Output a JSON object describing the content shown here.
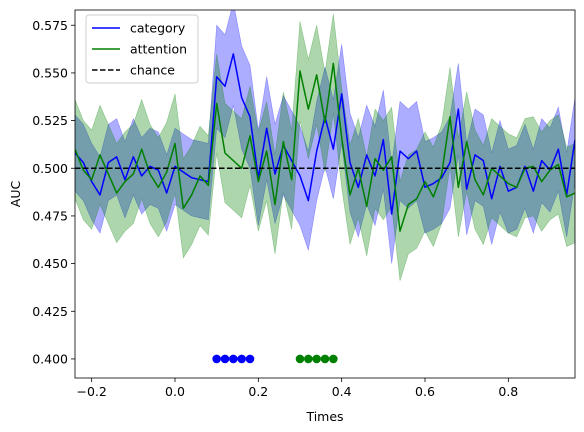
{
  "chart_data": {
    "type": "line",
    "xlabel": "Times",
    "ylabel": "AUC",
    "xlim": [
      -0.24,
      0.96
    ],
    "ylim": [
      0.39,
      0.583
    ],
    "grid": false,
    "legend_position": "top-left",
    "x_ticks": [
      -0.2,
      0.0,
      0.2,
      0.4,
      0.6,
      0.8
    ],
    "x_tick_labels": [
      "−0.2",
      "0.0",
      "0.2",
      "0.4",
      "0.6",
      "0.8"
    ],
    "y_ticks": [
      0.4,
      0.425,
      0.45,
      0.475,
      0.5,
      0.525,
      0.55,
      0.575
    ],
    "y_tick_labels": [
      "0.400",
      "0.425",
      "0.450",
      "0.475",
      "0.500",
      "0.525",
      "0.550",
      "0.575"
    ],
    "x": [
      -0.24,
      -0.22,
      -0.2,
      -0.18,
      -0.16,
      -0.14,
      -0.12,
      -0.1,
      -0.08,
      -0.06,
      -0.04,
      -0.02,
      0.0,
      0.02,
      0.04,
      0.06,
      0.08,
      0.1,
      0.12,
      0.14,
      0.16,
      0.18,
      0.2,
      0.22,
      0.24,
      0.26,
      0.28,
      0.3,
      0.32,
      0.34,
      0.36,
      0.38,
      0.4,
      0.42,
      0.44,
      0.46,
      0.48,
      0.5,
      0.52,
      0.54,
      0.56,
      0.58,
      0.6,
      0.62,
      0.64,
      0.66,
      0.68,
      0.7,
      0.72,
      0.74,
      0.76,
      0.78,
      0.8,
      0.82,
      0.84,
      0.86,
      0.88,
      0.9,
      0.92,
      0.94,
      0.96
    ],
    "series": [
      {
        "name": "category",
        "color": "#0000ff",
        "values": [
          0.508,
          0.503,
          0.493,
          0.486,
          0.503,
          0.506,
          0.494,
          0.506,
          0.496,
          0.501,
          0.499,
          0.487,
          0.501,
          0.498,
          0.495,
          0.494,
          0.493,
          0.548,
          0.543,
          0.56,
          0.537,
          0.527,
          0.495,
          0.521,
          0.497,
          0.512,
          0.504,
          0.496,
          0.483,
          0.509,
          0.527,
          0.51,
          0.539,
          0.503,
          0.49,
          0.507,
          0.496,
          0.515,
          0.476,
          0.509,
          0.505,
          0.509,
          0.49,
          0.492,
          0.495,
          0.503,
          0.531,
          0.489,
          0.507,
          0.504,
          0.484,
          0.501,
          0.488,
          0.49,
          0.501,
          0.488,
          0.504,
          0.499,
          0.51,
          0.486,
          0.515
        ],
        "lower": [
          0.488,
          0.483,
          0.473,
          0.466,
          0.483,
          0.486,
          0.474,
          0.486,
          0.476,
          0.481,
          0.479,
          0.467,
          0.481,
          0.478,
          0.475,
          0.474,
          0.473,
          0.521,
          0.516,
          0.533,
          0.51,
          0.5,
          0.47,
          0.494,
          0.471,
          0.486,
          0.478,
          0.47,
          0.457,
          0.483,
          0.501,
          0.484,
          0.513,
          0.477,
          0.464,
          0.481,
          0.47,
          0.489,
          0.45,
          0.483,
          0.479,
          0.483,
          0.466,
          0.468,
          0.471,
          0.479,
          0.507,
          0.465,
          0.483,
          0.48,
          0.46,
          0.477,
          0.466,
          0.468,
          0.479,
          0.466,
          0.482,
          0.477,
          0.488,
          0.464,
          0.493
        ],
        "upper": [
          0.528,
          0.523,
          0.513,
          0.506,
          0.523,
          0.526,
          0.514,
          0.526,
          0.516,
          0.521,
          0.519,
          0.507,
          0.521,
          0.518,
          0.515,
          0.514,
          0.513,
          0.575,
          0.57,
          0.587,
          0.564,
          0.554,
          0.52,
          0.548,
          0.523,
          0.538,
          0.53,
          0.522,
          0.509,
          0.535,
          0.553,
          0.536,
          0.565,
          0.529,
          0.516,
          0.533,
          0.522,
          0.541,
          0.502,
          0.535,
          0.531,
          0.535,
          0.514,
          0.516,
          0.519,
          0.527,
          0.555,
          0.513,
          0.531,
          0.528,
          0.508,
          0.525,
          0.51,
          0.512,
          0.523,
          0.51,
          0.526,
          0.521,
          0.532,
          0.508,
          0.537
        ]
      },
      {
        "name": "attention",
        "color": "#008000",
        "values": [
          0.51,
          0.499,
          0.494,
          0.507,
          0.497,
          0.487,
          0.493,
          0.497,
          0.51,
          0.497,
          0.49,
          0.498,
          0.513,
          0.479,
          0.486,
          0.496,
          0.491,
          0.534,
          0.508,
          0.504,
          0.5,
          0.517,
          0.493,
          0.509,
          0.481,
          0.514,
          0.494,
          0.551,
          0.531,
          0.549,
          0.524,
          0.555,
          0.516,
          0.486,
          0.5,
          0.48,
          0.505,
          0.499,
          0.506,
          0.467,
          0.481,
          0.484,
          0.493,
          0.485,
          0.497,
          0.527,
          0.49,
          0.514,
          0.494,
          0.486,
          0.5,
          0.496,
          0.492,
          0.49,
          0.5,
          0.501,
          0.493,
          0.499,
          0.502,
          0.485,
          0.487
        ],
        "lower": [
          0.484,
          0.473,
          0.468,
          0.481,
          0.471,
          0.461,
          0.467,
          0.471,
          0.484,
          0.471,
          0.464,
          0.472,
          0.487,
          0.453,
          0.46,
          0.47,
          0.465,
          0.508,
          0.482,
          0.478,
          0.474,
          0.491,
          0.467,
          0.483,
          0.455,
          0.488,
          0.468,
          0.525,
          0.505,
          0.523,
          0.498,
          0.529,
          0.49,
          0.46,
          0.474,
          0.454,
          0.479,
          0.473,
          0.48,
          0.441,
          0.455,
          0.458,
          0.467,
          0.459,
          0.471,
          0.501,
          0.464,
          0.488,
          0.468,
          0.46,
          0.474,
          0.47,
          0.466,
          0.464,
          0.474,
          0.475,
          0.467,
          0.473,
          0.476,
          0.459,
          0.461
        ],
        "upper": [
          0.536,
          0.525,
          0.52,
          0.533,
          0.523,
          0.513,
          0.519,
          0.523,
          0.536,
          0.523,
          0.516,
          0.524,
          0.539,
          0.505,
          0.512,
          0.522,
          0.517,
          0.56,
          0.534,
          0.53,
          0.526,
          0.543,
          0.519,
          0.535,
          0.507,
          0.54,
          0.52,
          0.577,
          0.557,
          0.575,
          0.55,
          0.581,
          0.542,
          0.512,
          0.526,
          0.506,
          0.531,
          0.525,
          0.532,
          0.493,
          0.507,
          0.51,
          0.519,
          0.511,
          0.523,
          0.553,
          0.516,
          0.54,
          0.52,
          0.512,
          0.526,
          0.522,
          0.518,
          0.516,
          0.526,
          0.527,
          0.519,
          0.525,
          0.528,
          0.511,
          0.513
        ]
      },
      {
        "name": "chance",
        "color": "#000000",
        "dashed": true,
        "y": 0.5
      }
    ],
    "significance_markers": [
      {
        "series": "category",
        "color": "#0000ff",
        "y": 0.4,
        "x": [
          0.1,
          0.12,
          0.14,
          0.16,
          0.18
        ]
      },
      {
        "series": "attention",
        "color": "#008000",
        "y": 0.4,
        "x": [
          0.3,
          0.32,
          0.34,
          0.36,
          0.38
        ]
      }
    ]
  }
}
